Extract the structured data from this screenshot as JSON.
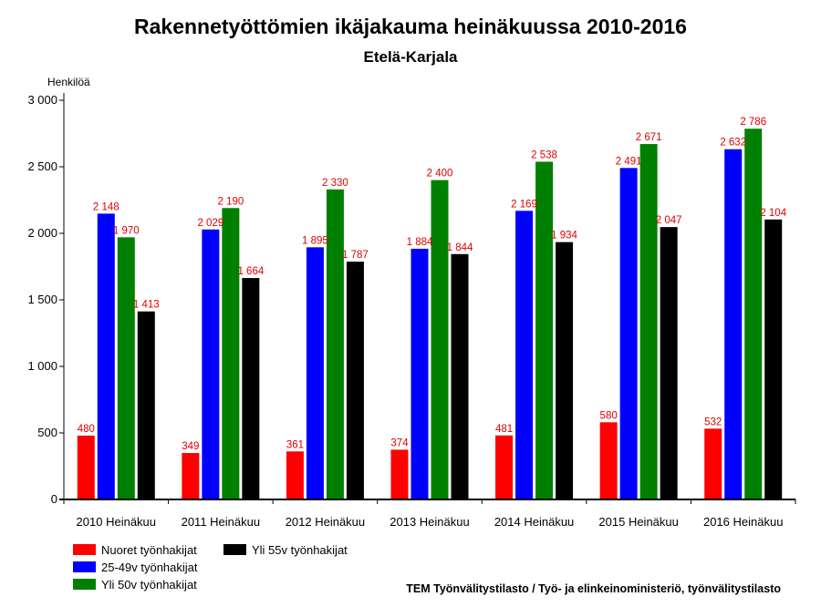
{
  "chart_data": {
    "type": "bar",
    "title": "Rakennetyöttömien ikäjakauma heinäkuussa 2010-2016",
    "subtitle": "Etelä-Karjala",
    "ylabel": "Henkilöä",
    "xlabel": "",
    "ylim": [
      0,
      3000
    ],
    "yticks": [
      0,
      500,
      1000,
      1500,
      2000,
      2500,
      3000
    ],
    "ytick_labels": [
      "0",
      "500",
      "1 000",
      "1 500",
      "2 000",
      "2 500",
      "3 000"
    ],
    "categories": [
      "2010 Heinäkuu",
      "2011 Heinäkuu",
      "2012 Heinäkuu",
      "2013 Heinäkuu",
      "2014 Heinäkuu",
      "2015 Heinäkuu",
      "2016 Heinäkuu"
    ],
    "series": [
      {
        "name": "Nuoret työnhakijat",
        "color": "#ff0000",
        "values": [
          480,
          349,
          361,
          374,
          481,
          580,
          532
        ],
        "labels": [
          "480",
          "349",
          "361",
          "374",
          "481",
          "580",
          "532"
        ]
      },
      {
        "name": "25-49v työnhakijat",
        "color": "#0000ff",
        "values": [
          2148,
          2029,
          1895,
          1884,
          2169,
          2491,
          2632
        ],
        "labels": [
          "2 148",
          "2 029",
          "1 895",
          "1 884",
          "2 169",
          "2 491",
          "2 632"
        ]
      },
      {
        "name": "Yli 50v työnhakijat",
        "color": "#008000",
        "values": [
          1970,
          2190,
          2330,
          2400,
          2538,
          2671,
          2786
        ],
        "labels": [
          "1 970",
          "2 190",
          "2 330",
          "2 400",
          "2 538",
          "2 671",
          "2 786"
        ]
      },
      {
        "name": "Yli 55v työnhakijat",
        "color": "#000000",
        "values": [
          1413,
          1664,
          1787,
          1844,
          1934,
          2047,
          2104
        ],
        "labels": [
          "1 413",
          "1 664",
          "1 787",
          "1 844",
          "1 934",
          "2 047",
          "2 104"
        ]
      }
    ],
    "grid": false,
    "legend_position": "bottom-left",
    "source": "TEM Työnvälitystilasto / Työ- ja elinkeinoministeriö, työnvälitystilasto"
  }
}
